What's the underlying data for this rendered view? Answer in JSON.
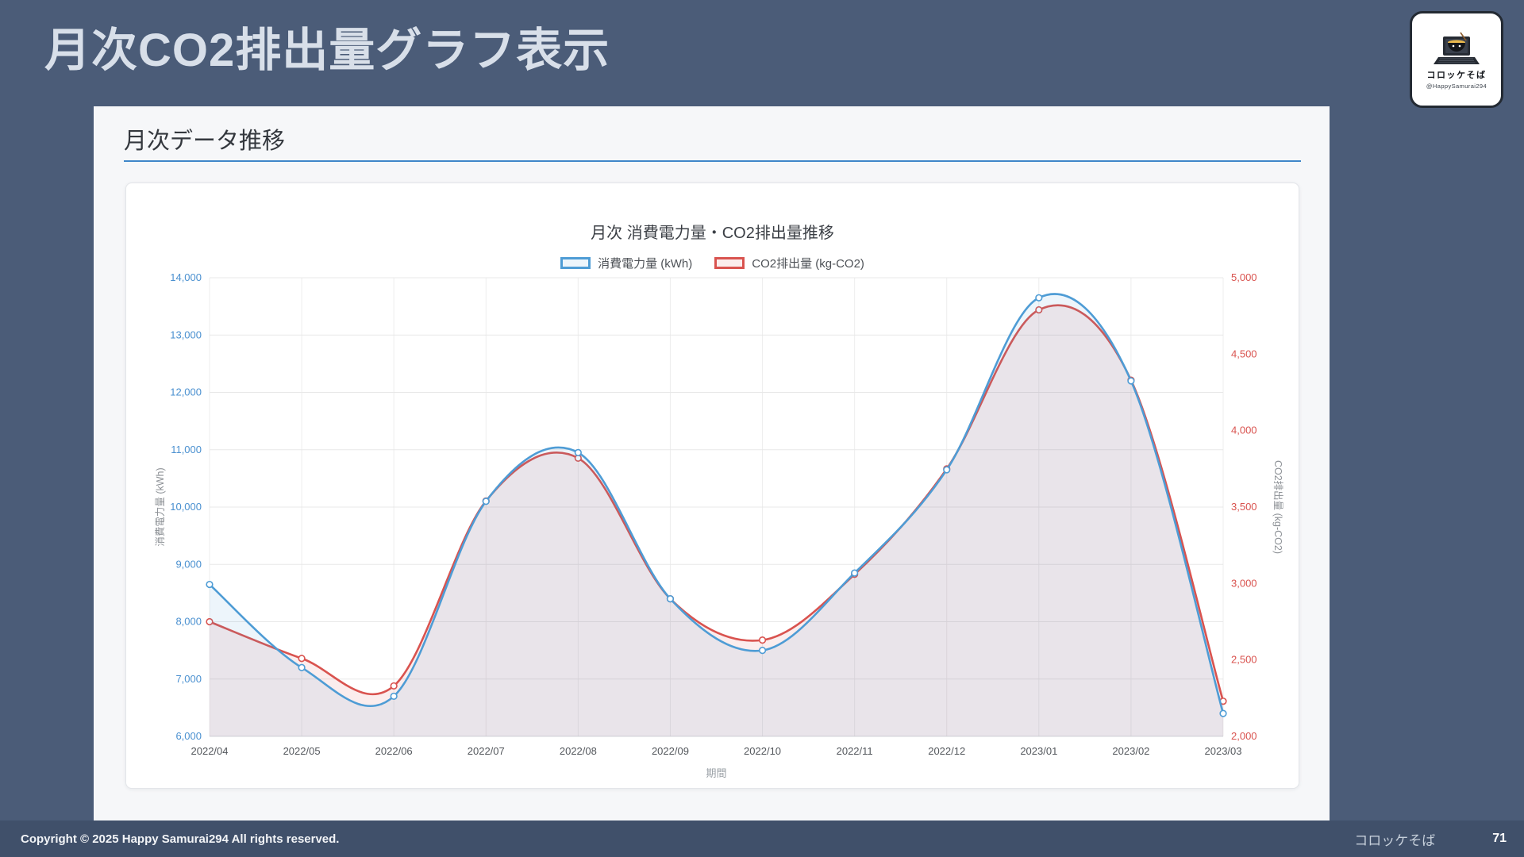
{
  "slide": {
    "title": "月次CO2排出量グラフ表示",
    "logo": {
      "brand": "コロッケそば",
      "handle": "@HappySamurai294"
    },
    "footer": {
      "copyright": "Copyright © 2025 Happy Samurai294 All rights reserved.",
      "brand": "コロッケそば",
      "page": "71"
    }
  },
  "panel": {
    "heading": "月次データ推移"
  },
  "colors": {
    "background": "#4b5c78",
    "accent_rule": "#3f87c9",
    "series_power": "#4e9cd5",
    "series_co2": "#d9534f"
  },
  "chart_data": {
    "type": "line",
    "title": "月次 消費電力量・CO2排出量推移",
    "xlabel": "期間",
    "grid": true,
    "legend_position": "top",
    "x": [
      "2022/04",
      "2022/05",
      "2022/06",
      "2022/07",
      "2022/08",
      "2022/09",
      "2022/10",
      "2022/11",
      "2022/12",
      "2023/01",
      "2023/02",
      "2023/03"
    ],
    "series": [
      {
        "name": "消費電力量 (kWh)",
        "axis": "left",
        "color": "#4e9cd5",
        "fill": "rgba(78,156,213,0.10)",
        "values": [
          8650,
          7200,
          6700,
          10100,
          10950,
          8400,
          7500,
          8850,
          10650,
          13650,
          12200,
          6400
        ]
      },
      {
        "name": "CO2排出量 (kg-CO2)",
        "axis": "right",
        "color": "#d9534f",
        "fill": "rgba(217,83,79,0.10)",
        "values": [
          2750,
          2510,
          2330,
          3540,
          3820,
          2900,
          2630,
          3060,
          3750,
          4790,
          4330,
          2230
        ]
      }
    ],
    "left_axis": {
      "label": "消費電力量 (kWh)",
      "min": 6000,
      "max": 14000,
      "step": 1000,
      "ticks": [
        "6,000",
        "7,000",
        "8,000",
        "9,000",
        "10,000",
        "11,000",
        "12,000",
        "13,000",
        "14,000"
      ]
    },
    "right_axis": {
      "label": "CO2排出量 (kg-CO2)",
      "min": 2000,
      "max": 5000,
      "step": 500,
      "ticks": [
        "2,000",
        "2,500",
        "3,000",
        "3,500",
        "4,000",
        "4,500",
        "5,000"
      ]
    }
  }
}
